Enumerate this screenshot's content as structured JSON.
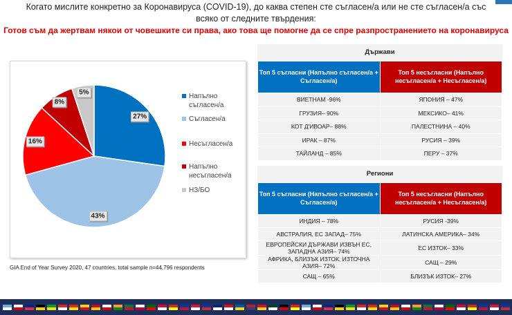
{
  "header": {
    "question": "Когато мислите конкретно за Коронавируса (COVID-19), до каква степен сте съгласен/а или не сте съгласен/а със всяко от следните твърдения:",
    "statement": "Готов съм да жертвам някои от човешките си права, ако това ще помогне да се спре разпространението на коронавируса"
  },
  "chart_data": {
    "type": "pie",
    "title": "",
    "labels": [
      "Напълно съгласен/а",
      "Съгласен/а",
      "Несъгласен/а",
      "Напълно несъгласен/а",
      "НЗ/БО"
    ],
    "values": [
      27,
      43,
      16,
      8,
      5
    ],
    "value_labels": [
      "27%",
      "43%",
      "16%",
      "8%",
      "5%"
    ],
    "colors": [
      "#0070c0",
      "#9dc3e6",
      "#ff0000",
      "#c00000",
      "#c9c9c9"
    ],
    "legend": "right"
  },
  "source": "GIA End of Year Survey 2020, 47 countries,  total sample n=44,796 respondents",
  "countries": {
    "title": "Държави",
    "agree_header": "Топ 5 съгласни (Напълно съгласен/а + Съгласен/а)",
    "disagree_header": "Топ 5 несъгласни (Напълно несъгласен/а + Несъгласен/а)",
    "rows": [
      [
        "ВИЕТНАМ -96%",
        "ЯПОНИЯ – 47%"
      ],
      [
        "ГРУЗИЯ– 90%",
        "МЕКСИКО– 41%"
      ],
      [
        "КОТ Д'ИВОАР– 88%",
        "ПАЛЕСТНИНА – 40%"
      ],
      [
        "ИРАК – 87%",
        "РУСИЯ – 39%"
      ],
      [
        "ТАЙЛАНД – 85%",
        "ПЕРУ – 37%"
      ]
    ]
  },
  "regions": {
    "title": "Региони",
    "agree_header": "Топ 5 съгласни (Напълно съгласен/а + Съгласен/а)",
    "disagree_header": "Топ 5 несъгласни (Напълно несъгласен/а + Несъгласен/а)",
    "rows": [
      [
        "ИНДИЯ – 78%",
        "РУСИЯ -39%"
      ],
      [
        "АВСТРАЛИЯ, ЕС ЗАПАД– 75%",
        "ЛАТИНСКА АМЕРИКА– 34%"
      ],
      [
        "ЕВРОПЕЙСКИ ДЪРЖАВИ ИЗВЪН ЕС, ЗАПАДНА АЗИЯ– 74%",
        "ЕС ИЗТОК– 33%"
      ],
      [
        "АФРИКА, БЛИЗЪК ИЗТОК, ИЗТОЧНА АЗИЯ– 72%",
        "САЩ – 29%"
      ],
      [
        "САЩ – 65%",
        "БЛИЗЪК ИЗТОК– 27%"
      ]
    ]
  }
}
